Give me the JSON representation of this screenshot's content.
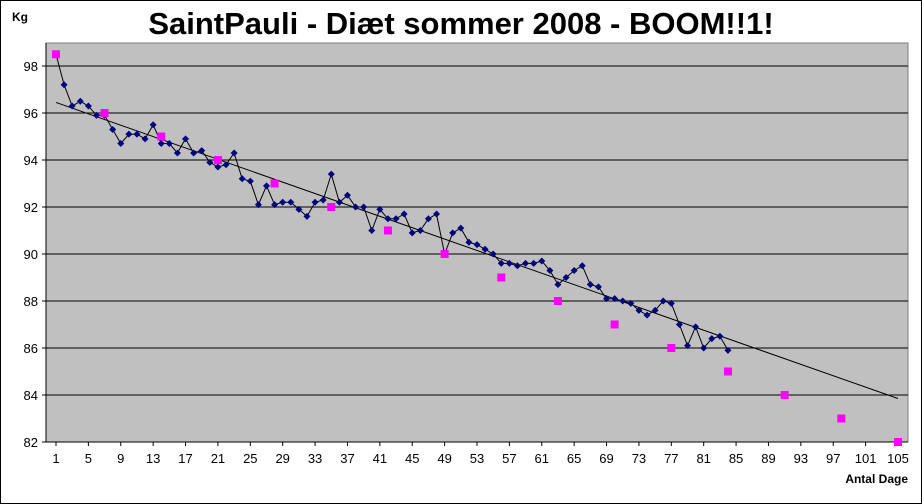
{
  "chart_data": {
    "type": "scatter",
    "title": "SaintPauli - Diæt sommer 2008 - BOOM!!1!",
    "ylabel": "Kg",
    "xlabel": "Antal Dage",
    "xlim": [
      1,
      105
    ],
    "ylim": [
      82,
      99
    ],
    "x_ticks": [
      1,
      5,
      9,
      13,
      17,
      21,
      25,
      29,
      33,
      37,
      41,
      45,
      49,
      53,
      57,
      61,
      65,
      69,
      73,
      77,
      81,
      85,
      89,
      93,
      97,
      101,
      105
    ],
    "y_ticks": [
      82,
      84,
      86,
      88,
      90,
      92,
      94,
      96,
      98
    ],
    "grid": "horizontal",
    "series": [
      {
        "kind": "line-markers",
        "color": "#000080",
        "marker": "diamond",
        "x": [
          1,
          2,
          3,
          4,
          5,
          6,
          7,
          8,
          9,
          10,
          11,
          12,
          13,
          14,
          15,
          16,
          17,
          18,
          19,
          20,
          21,
          22,
          23,
          24,
          25,
          26,
          27,
          28,
          29,
          30,
          31,
          32,
          33,
          34,
          35,
          36,
          37,
          38,
          39,
          40,
          41,
          42,
          43,
          44,
          45,
          46,
          47,
          48,
          49,
          50,
          51,
          52,
          53,
          54,
          55,
          56,
          57,
          58,
          59,
          60,
          61,
          62,
          63,
          64,
          65,
          66,
          67,
          68,
          69,
          70,
          71,
          72,
          73,
          74,
          75,
          76,
          77,
          78,
          79,
          80,
          81,
          82,
          83,
          84
        ],
        "y": [
          98.5,
          97.2,
          96.3,
          96.5,
          96.3,
          95.9,
          95.9,
          95.3,
          94.7,
          95.1,
          95.1,
          94.9,
          95.5,
          94.7,
          94.7,
          94.3,
          94.9,
          94.3,
          94.4,
          93.9,
          93.7,
          93.8,
          94.3,
          93.2,
          93.1,
          92.1,
          92.9,
          92.1,
          92.2,
          92.2,
          91.9,
          91.6,
          92.2,
          92.3,
          93.4,
          92.2,
          92.5,
          92.0,
          92.0,
          91.0,
          91.9,
          91.5,
          91.5,
          91.7,
          90.9,
          91.0,
          91.5,
          91.7,
          90.0,
          90.9,
          91.1,
          90.5,
          90.4,
          90.2,
          90.0,
          89.6,
          89.6,
          89.5,
          89.6,
          89.6,
          89.7,
          89.3,
          88.7,
          89.0,
          89.3,
          89.5,
          88.7,
          88.6,
          88.1,
          88.1,
          88.0,
          87.9,
          87.6,
          87.4,
          87.6,
          88.0,
          87.9,
          87.0,
          86.1,
          86.9,
          86.0,
          86.4,
          86.5,
          85.9
        ]
      },
      {
        "kind": "markers",
        "color": "#ff00ff",
        "marker": "square",
        "x": [
          1,
          7,
          14,
          21,
          28,
          35,
          42,
          49,
          56,
          63,
          70,
          77,
          84,
          91,
          98,
          105
        ],
        "y": [
          98.5,
          96.0,
          95.0,
          94.0,
          93.0,
          92.0,
          91.0,
          90.0,
          89.0,
          88.0,
          87.0,
          86.0,
          85.0,
          84.0,
          83.0,
          82.0
        ]
      },
      {
        "kind": "trendline",
        "color": "#000000",
        "x": [
          1,
          105
        ],
        "y": [
          96.45,
          83.85
        ]
      }
    ]
  }
}
